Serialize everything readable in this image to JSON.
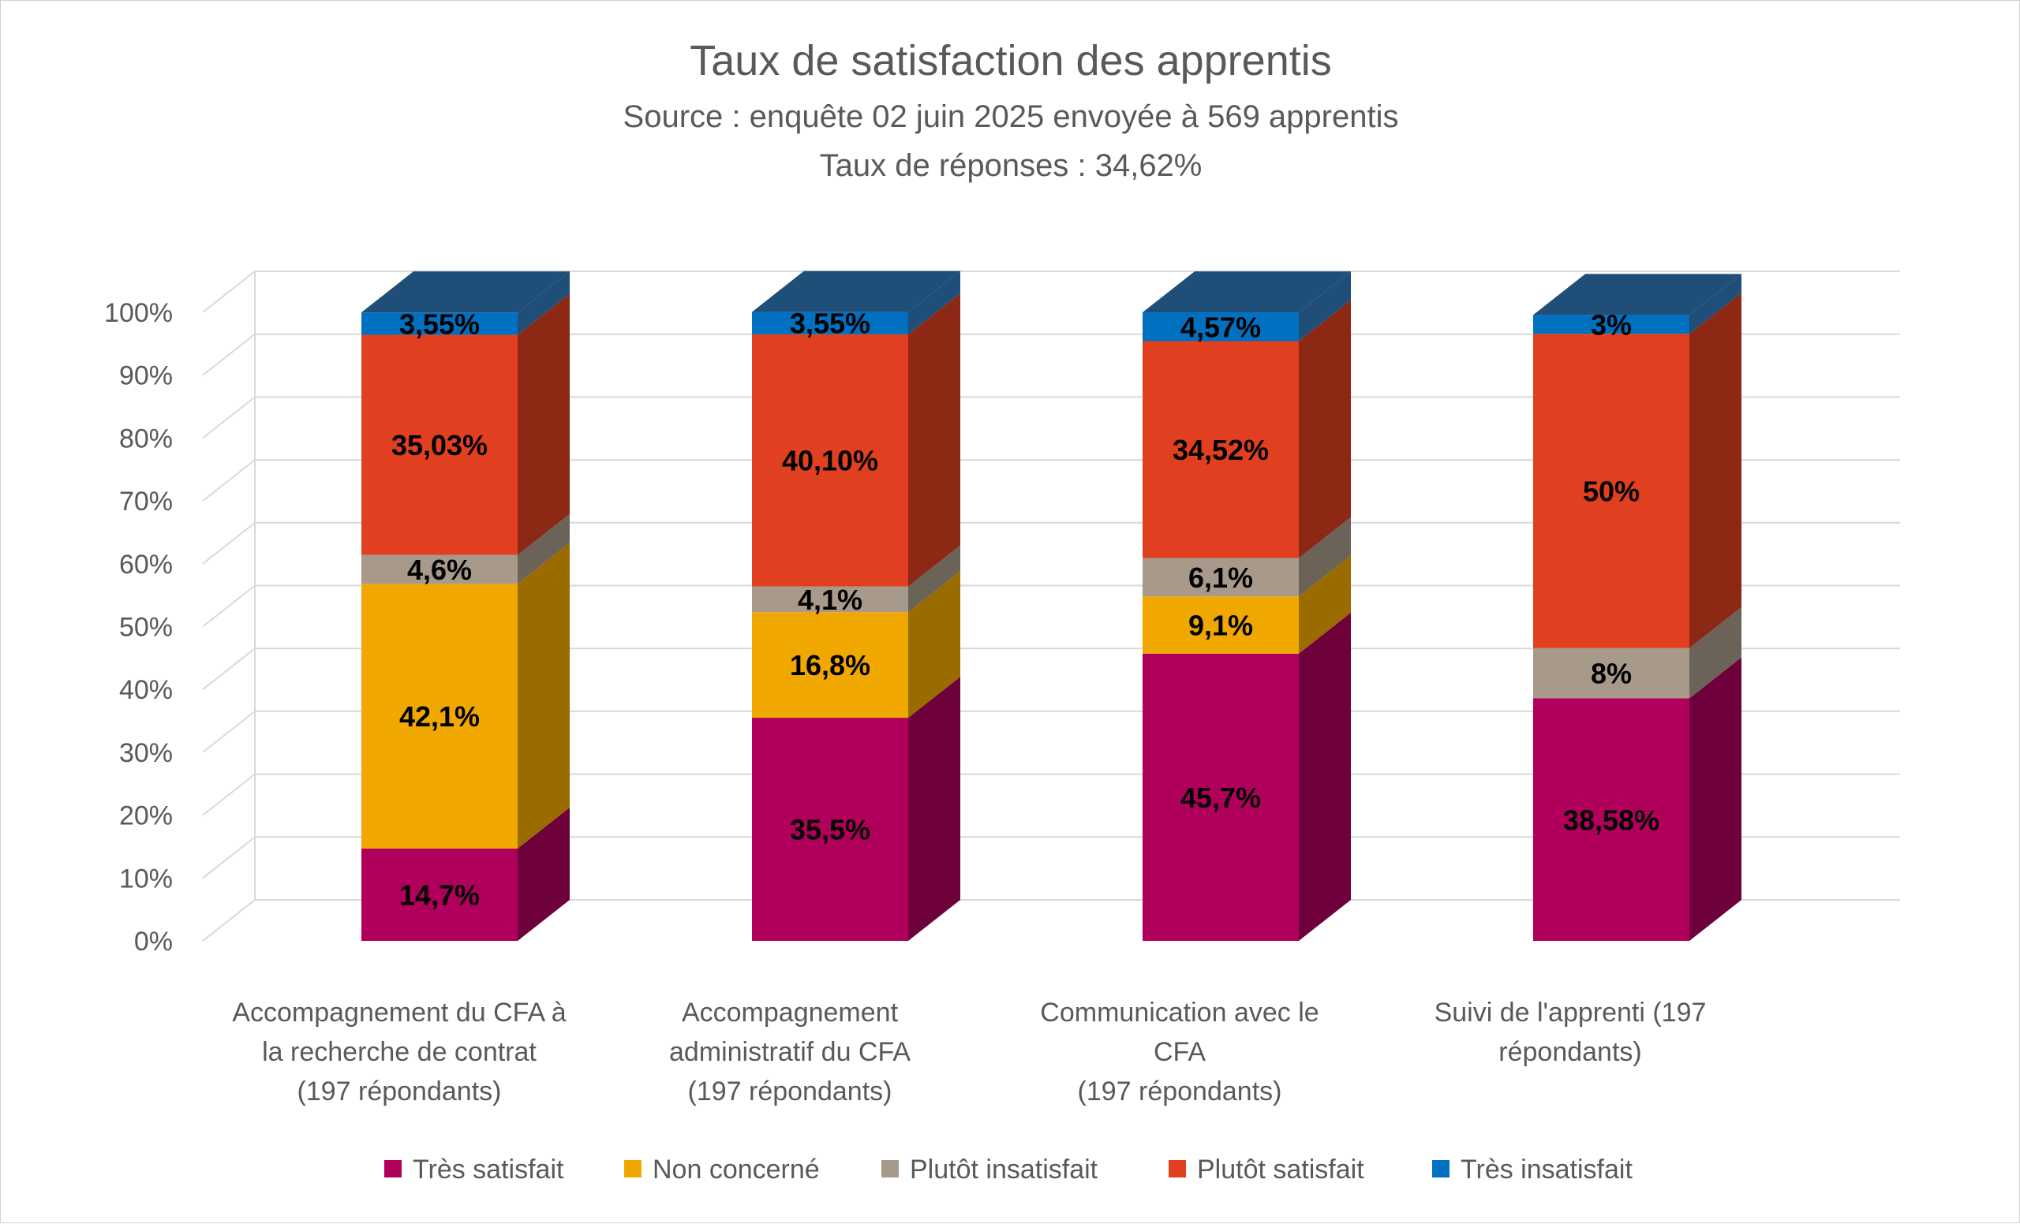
{
  "chart_data": {
    "type": "bar",
    "stacked": true,
    "three_d": true,
    "percent_stacked": true,
    "title": "Taux de satisfaction des apprentis",
    "subtitle_lines": [
      "Source : enquête 02 juin 2025 envoyée à  569 apprentis",
      "Taux de réponses : 34,62%"
    ],
    "categories": [
      [
        "Accompagnement du CFA à",
        "la recherche de contrat",
        "(197 répondants)"
      ],
      [
        "Accompagnement",
        "administratif du CFA",
        "(197 répondants)"
      ],
      [
        "Communication avec le",
        "CFA",
        "(197 répondants)"
      ],
      [
        "Suivi de l'apprenti (197",
        "répondants)"
      ]
    ],
    "ylim": [
      0,
      100
    ],
    "yticks": [
      0,
      10,
      20,
      30,
      40,
      50,
      60,
      70,
      80,
      90,
      100
    ],
    "ytick_labels": [
      "0%",
      "10%",
      "20%",
      "30%",
      "40%",
      "50%",
      "60%",
      "70%",
      "80%",
      "90%",
      "100%"
    ],
    "grid": true,
    "legend_position": "bottom",
    "series": [
      {
        "name": "Très satisfait",
        "color": "#b0005c",
        "side_color": "#6e003c",
        "values": [
          14.7,
          35.5,
          45.7,
          38.58
        ],
        "labels": [
          "14,7%",
          "35,5%",
          "45,7%",
          "38,58%"
        ]
      },
      {
        "name": "Non concerné",
        "color": "#f0a800",
        "side_color": "#9a6c00",
        "values": [
          42.1,
          16.8,
          9.1,
          0
        ],
        "labels": [
          "42,1%",
          "16,8%",
          "9,1%",
          ""
        ]
      },
      {
        "name": "Plutôt insatisfait",
        "color": "#a89a8a",
        "side_color": "#6b6258",
        "values": [
          4.6,
          4.1,
          6.1,
          8
        ],
        "labels": [
          "4,6%",
          "4,1%",
          "6,1%",
          "8%"
        ]
      },
      {
        "name": "Plutôt satisfait",
        "color": "#e04020",
        "side_color": "#8c2814",
        "values": [
          35.03,
          40.1,
          34.52,
          50
        ],
        "labels": [
          "35,03%",
          "40,10%",
          "34,52%",
          "50%"
        ]
      },
      {
        "name": "Très insatisfait",
        "color": "#0070c0",
        "side_color": "#1f4e79",
        "values": [
          3.55,
          3.55,
          4.57,
          3
        ],
        "labels": [
          "3,55%",
          "3,55%",
          "4,57%",
          "3%"
        ]
      }
    ]
  },
  "colors": {
    "top_face": "#1f4e79",
    "grid": "#d9d9d9",
    "text": "#595959"
  }
}
